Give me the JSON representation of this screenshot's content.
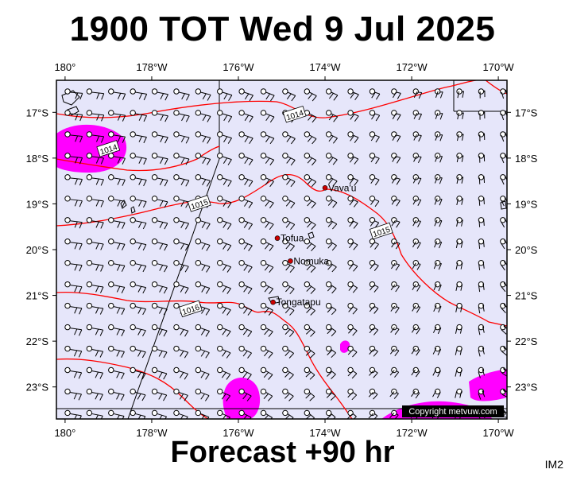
{
  "title": "1900 TOT Wed 9 Jul 2025",
  "subtitle": "Forecast +90 hr",
  "badge": "IM2",
  "copyright": "Copyright metvuw.com",
  "map": {
    "lon_range": [
      -180.2,
      -169.8
    ],
    "lat_range": [
      -16.3,
      -23.7
    ],
    "lon_ticks": [
      {
        "lon": -180,
        "label": "180°"
      },
      {
        "lon": -178,
        "label": "178°W"
      },
      {
        "lon": -176,
        "label": "176°W"
      },
      {
        "lon": -174,
        "label": "174°W"
      },
      {
        "lon": -172,
        "label": "172°W"
      },
      {
        "lon": -170,
        "label": "170°W"
      }
    ],
    "lat_ticks": [
      {
        "lat": -17,
        "label": "17°S"
      },
      {
        "lat": -18,
        "label": "18°S"
      },
      {
        "lat": -19,
        "label": "19°S"
      },
      {
        "lat": -20,
        "label": "20°S"
      },
      {
        "lat": -21,
        "label": "21°S"
      },
      {
        "lat": -22,
        "label": "22°S"
      },
      {
        "lat": -23,
        "label": "23°S"
      }
    ],
    "places": [
      {
        "name": "Vava'u",
        "lon": -174.0,
        "lat": -18.65
      },
      {
        "name": "Tofua",
        "lon": -175.1,
        "lat": -19.75
      },
      {
        "name": "Nomuka",
        "lon": -174.8,
        "lat": -20.25
      },
      {
        "name": "Tongatapu",
        "lon": -175.2,
        "lat": -21.15
      }
    ],
    "isobar_labels": [
      {
        "text": "1014",
        "lon": -179.0,
        "lat": -17.8
      },
      {
        "text": "1014",
        "lon": -174.7,
        "lat": -17.05
      },
      {
        "text": "1015",
        "lon": -176.9,
        "lat": -19.0
      },
      {
        "text": "1015",
        "lon": -172.7,
        "lat": -19.6
      },
      {
        "text": "1016",
        "lon": -177.1,
        "lat": -21.3
      }
    ],
    "colors": {
      "background": "#e6e6fa",
      "isobar": "#ff0000",
      "rain": "#ff00ff",
      "place_marker": "#cc0000"
    }
  }
}
